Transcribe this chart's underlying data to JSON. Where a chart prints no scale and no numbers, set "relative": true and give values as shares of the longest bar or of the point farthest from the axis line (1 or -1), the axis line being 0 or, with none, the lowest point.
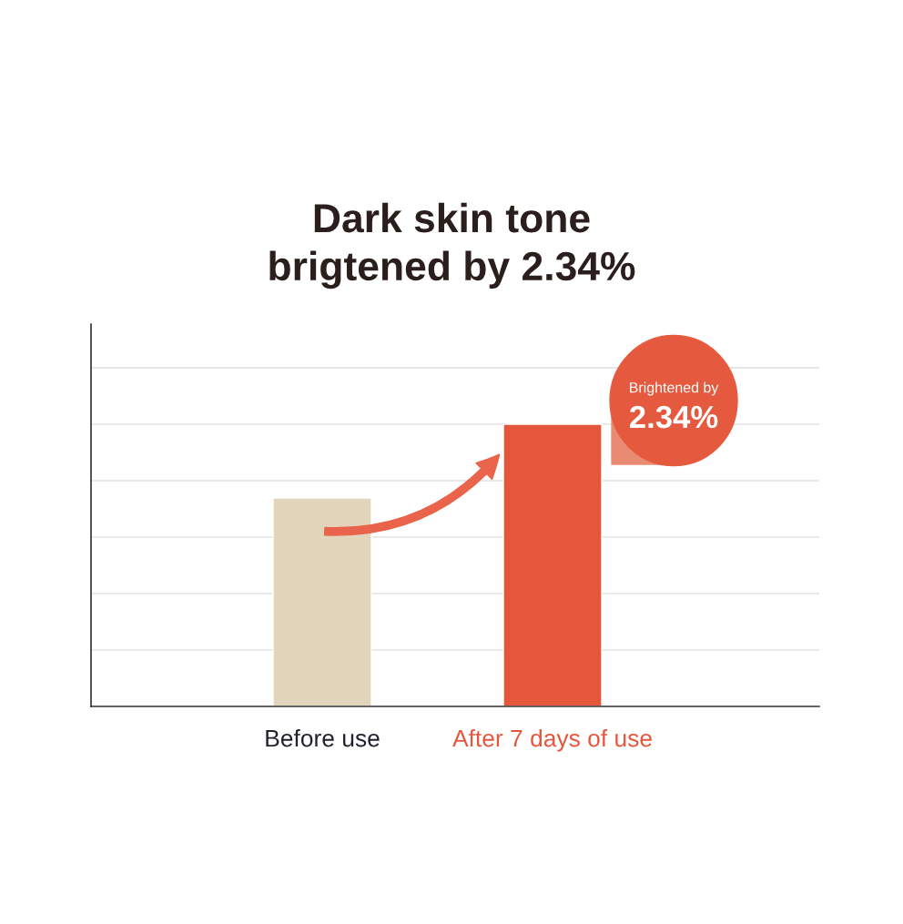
{
  "chart_data": {
    "type": "bar",
    "title": "Dark skin tone\nbrigtened by 2.34%",
    "categories": [
      "Before use",
      "After 7 days of use"
    ],
    "values": [
      0.739,
      1
    ],
    "colors": [
      "#e2d5bb",
      "#e5573c"
    ],
    "relative": true,
    "grid": "y",
    "annotations": [
      {
        "text": "Brightened by\n2.34%",
        "x": "After 7 days of use",
        "y": 1
      }
    ]
  }
}
